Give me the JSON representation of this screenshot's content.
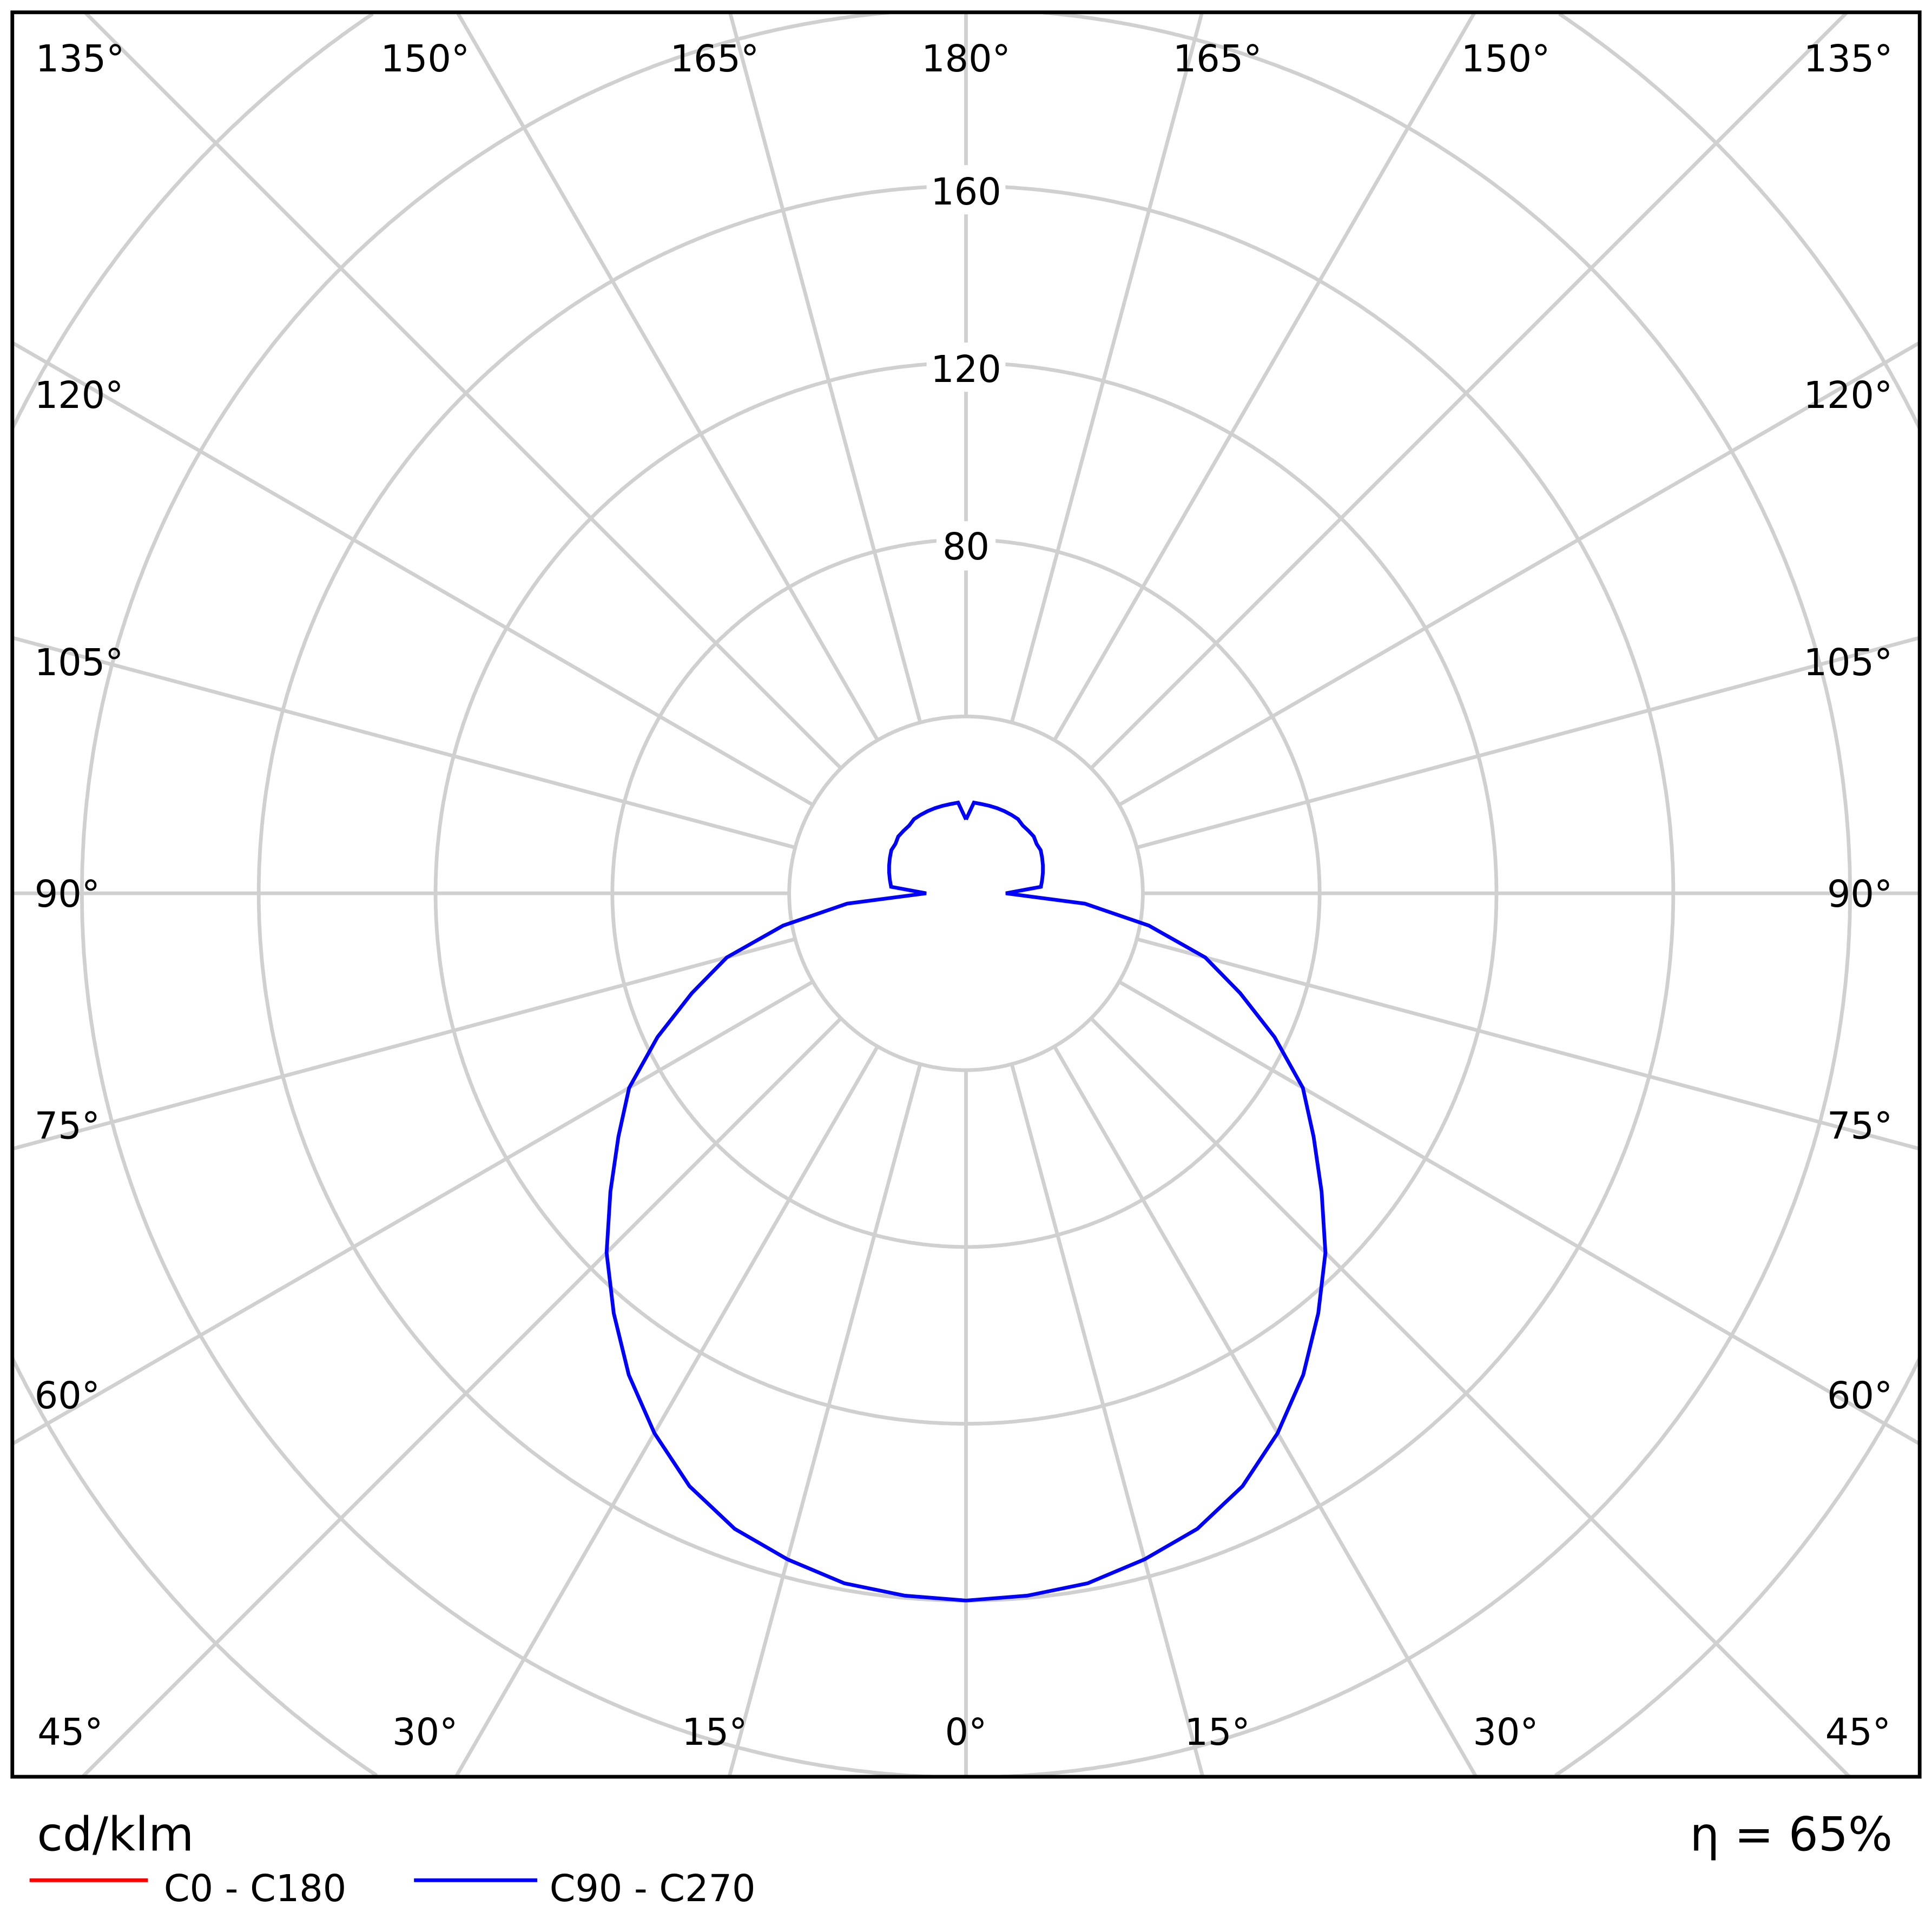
{
  "chart_data": {
    "type": "polar",
    "unit_label": "cd/klm",
    "efficiency_label": "η = 65%",
    "radial_ticks": [
      80,
      120,
      160
    ],
    "radial_tick_labels": [
      "80",
      "120",
      "160"
    ],
    "radial_grid": [
      40,
      80,
      120,
      160,
      200,
      240
    ],
    "angle_labels": {
      "top": [
        "135°",
        "150°",
        "165°",
        "180°",
        "165°",
        "150°",
        "135°"
      ],
      "left": [
        "120°",
        "105°",
        "90°",
        "75°",
        "60°"
      ],
      "right": [
        "120°",
        "105°",
        "90°",
        "75°",
        "60°"
      ],
      "bottom": [
        "45°",
        "30°",
        "15°",
        "0°",
        "15°",
        "30°",
        "45°"
      ]
    },
    "grid": true,
    "legend_position": "bottom-left",
    "series": [
      {
        "name": "C0 - C180",
        "color": "#ff0000"
      },
      {
        "name": "C90 - C270",
        "color": "#0000ff",
        "gamma": [
          0,
          5,
          10,
          15,
          20,
          25,
          30,
          35,
          40,
          45,
          50,
          55,
          60,
          65,
          70,
          75,
          80,
          85,
          90,
          95,
          100,
          105,
          110,
          115,
          120,
          125,
          130,
          135,
          140,
          145,
          150,
          155,
          160,
          165,
          170,
          175,
          180
        ],
        "values": [
          160,
          159.5,
          158.5,
          156,
          153,
          148,
          141,
          133,
          124,
          115,
          105,
          96,
          88,
          77,
          66,
          56,
          42,
          27,
          9,
          17,
          17.5,
          18,
          18.5,
          19,
          19.5,
          19.5,
          20,
          20,
          20,
          20.5,
          20.5,
          20.5,
          20.5,
          20.5,
          20.5,
          20.6,
          16.7
        ]
      }
    ]
  }
}
